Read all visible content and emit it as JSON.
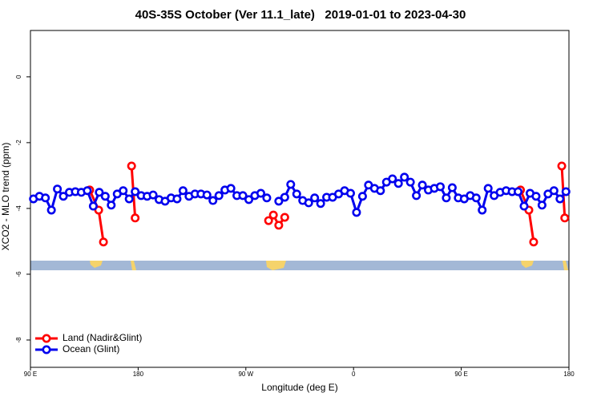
{
  "chart_data": {
    "type": "line",
    "title": "40S-35S October (Ver 11.1_late)   2019-01-01 to 2023-04-30",
    "xlabel": "Longitude (deg E)",
    "ylabel": "XCO2 - MLO trend (ppm)",
    "xlim": [
      90,
      540
    ],
    "xticks": [
      {
        "value": 90,
        "label": "90 E"
      },
      180,
      {
        "value": 270,
        "label": "90 W"
      },
      {
        "value": 360,
        "label": "0"
      },
      {
        "value": 450,
        "label": "90 E"
      },
      {
        "value": 540,
        "label": "180"
      }
    ],
    "ylim": [
      -8.83,
      1.41
    ],
    "yticks": [
      0,
      -2,
      -4,
      -6,
      -8
    ],
    "legend": "bottom-left",
    "series": [
      {
        "name": "Land (Nadir&Glint)",
        "color": "#ff0000",
        "x": [
          139.5,
          147,
          151,
          162.5,
          174.5,
          177.5,
          230,
          289,
          293,
          297.5,
          302.5,
          400,
          499.5,
          506.5,
          510.5,
          522.5,
          534,
          536.5
        ],
        "values": [
          -3.44,
          -4.05,
          -5.02,
          null,
          -2.71,
          -4.29,
          null,
          -4.37,
          -4.2,
          -4.51,
          -4.27,
          null,
          -3.44,
          -4.05,
          -5.02,
          null,
          -2.71,
          -4.29
        ]
      },
      {
        "name": "Ocean (Glint)",
        "color": "#0000ee",
        "x": [
          92.5,
          97.5,
          102.5,
          107.5,
          112.5,
          117.5,
          122.5,
          127.5,
          132.5,
          137.5,
          142.5,
          147.5,
          152.5,
          157.5,
          162.5,
          167.5,
          172.5,
          177.5,
          182.5,
          187.5,
          192.5,
          197.5,
          202.5,
          207.5,
          212.5,
          217.5,
          222.5,
          227.5,
          232.5,
          237.5,
          242.5,
          247.5,
          252.5,
          257.5,
          262.5,
          267.5,
          272.5,
          277.5,
          282.5,
          287.5,
          292.5,
          297.5,
          302.5,
          307.5,
          312.5,
          317.5,
          322.5,
          327.5,
          332.5,
          337.5,
          342.5,
          347.5,
          352.5,
          357.5,
          362.5,
          367.5,
          372.5,
          377.5,
          382.5,
          387.5,
          392.5,
          397.5,
          402.5,
          407.5,
          412.5,
          417.5,
          422.5,
          427.5,
          432.5,
          437.5,
          442.5,
          447.5,
          452.5,
          457.5,
          462.5,
          467.5,
          472.5,
          477.5,
          482.5,
          487.5,
          492.5,
          497.5,
          502.5,
          507.5,
          512.5,
          517.5,
          522.5,
          527.5,
          532.5,
          537.5
        ],
        "values": [
          -3.71,
          -3.63,
          -3.68,
          -4.05,
          -3.41,
          -3.63,
          -3.51,
          -3.49,
          -3.51,
          -3.46,
          -3.93,
          -3.51,
          -3.63,
          -3.9,
          -3.56,
          -3.46,
          -3.71,
          -3.49,
          -3.61,
          -3.63,
          -3.59,
          -3.73,
          -3.78,
          -3.68,
          -3.71,
          -3.46,
          -3.63,
          -3.56,
          -3.56,
          -3.59,
          -3.76,
          -3.61,
          -3.44,
          -3.39,
          -3.61,
          -3.61,
          -3.73,
          -3.61,
          -3.54,
          -3.68,
          null,
          -3.78,
          -3.66,
          -3.27,
          -3.56,
          -3.76,
          -3.83,
          -3.68,
          -3.85,
          -3.66,
          -3.66,
          -3.56,
          -3.46,
          -3.54,
          -4.12,
          -3.63,
          -3.29,
          -3.39,
          -3.46,
          -3.2,
          -3.1,
          -3.24,
          -3.05,
          -3.2,
          -3.61,
          -3.29,
          -3.44,
          -3.39,
          -3.34,
          -3.68,
          -3.37,
          -3.68,
          -3.71,
          -3.61,
          -3.68,
          -4.05,
          -3.39,
          -3.61,
          -3.51,
          -3.46,
          -3.49,
          -3.49,
          -3.93,
          -3.54,
          -3.63,
          -3.9,
          -3.56,
          -3.46,
          -3.71,
          -3.49
        ]
      }
    ]
  }
}
